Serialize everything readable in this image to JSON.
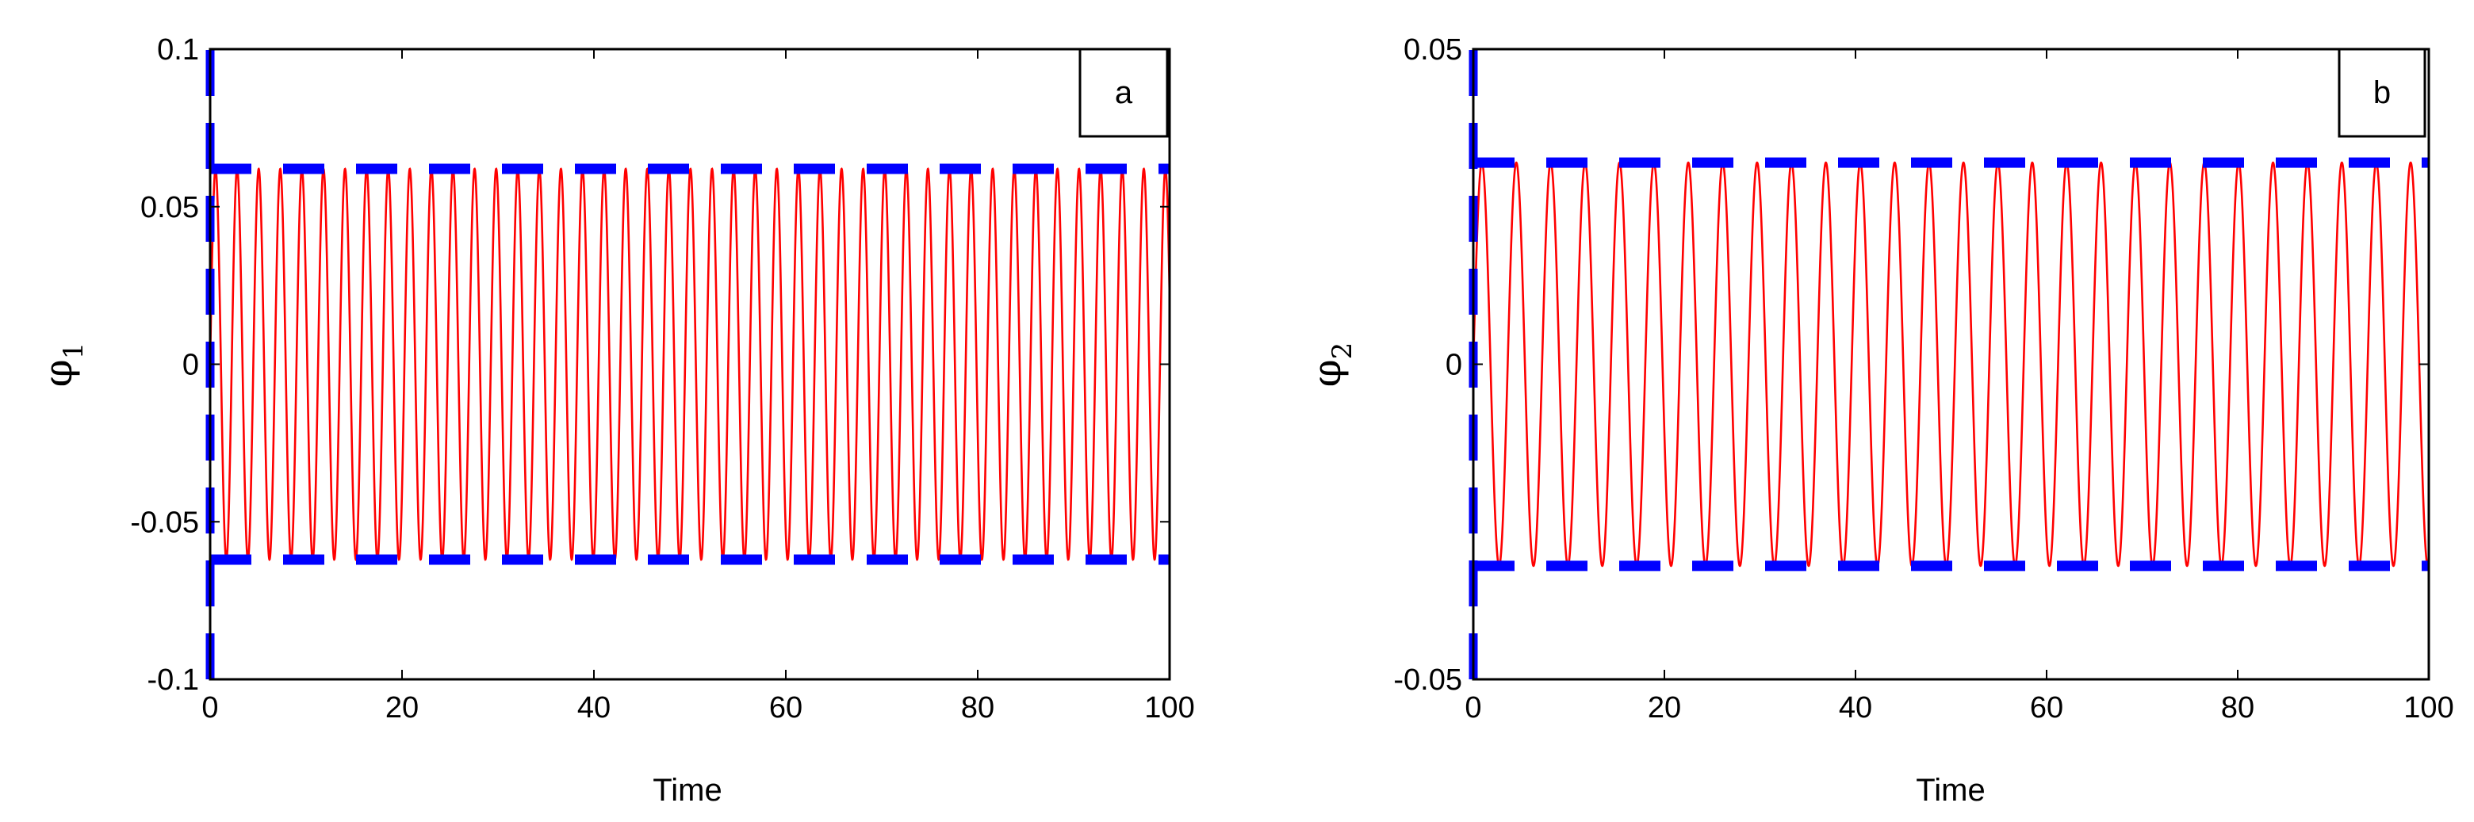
{
  "colors": {
    "signal": "#ff0000",
    "bound": "#0000ff",
    "axis": "#000000"
  },
  "chart_data": [
    {
      "type": "line",
      "panel_label": "a",
      "xlabel": "Time",
      "ylabel_symbol": "φ",
      "ylabel_subscript": "1",
      "xlim": [
        0,
        100
      ],
      "ylim": [
        -0.1,
        0.1
      ],
      "x_ticks": [
        "0",
        "20",
        "40",
        "60",
        "80",
        "100"
      ],
      "y_ticks": [
        "-0.1",
        "-0.05",
        "0",
        "0.05",
        "0.1"
      ],
      "signal": {
        "style": "solid-red",
        "amplitude": 0.062,
        "period": 2.25,
        "t_start": 0,
        "t_end": 100
      },
      "bounds": {
        "style": "dashed-blue",
        "upper": 0.062,
        "lower": -0.062,
        "vertical_at_x": 0,
        "vertical_range": [
          -0.1,
          0.1
        ]
      }
    },
    {
      "type": "line",
      "panel_label": "b",
      "xlabel": "Time",
      "ylabel_symbol": "φ",
      "ylabel_subscript": "2",
      "xlim": [
        0,
        100
      ],
      "ylim": [
        -0.05,
        0.05
      ],
      "x_ticks": [
        "0",
        "20",
        "40",
        "60",
        "80",
        "100"
      ],
      "y_ticks": [
        "-0.05",
        "0",
        "0.05"
      ],
      "signal": {
        "style": "solid-red",
        "amplitude": 0.032,
        "period": 3.6,
        "t_start": 0,
        "t_end": 100
      },
      "bounds": {
        "style": "dashed-blue",
        "upper": 0.032,
        "lower": -0.032,
        "vertical_at_x": 0,
        "vertical_range": [
          -0.05,
          0.05
        ]
      }
    }
  ]
}
